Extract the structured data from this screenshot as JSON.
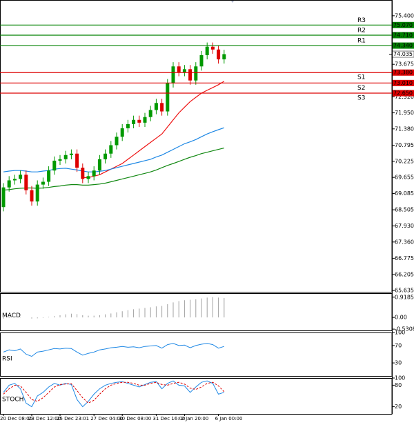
{
  "chart_data": [
    {
      "type": "candlestick",
      "categories": [
        "20 Dec 08:00",
        null,
        null,
        null,
        null,
        "23 Dec 12:00",
        null,
        null,
        null,
        null,
        "25 Dec 23:01",
        null,
        null,
        null,
        null,
        null,
        "27 Dec 04:00",
        null,
        null,
        null,
        null,
        "30 Dec 08:00",
        null,
        null,
        null,
        null,
        null,
        "31 Dec 16:00",
        null,
        null,
        null,
        null,
        "2 Jan 20:00",
        null,
        null,
        null,
        null,
        null,
        "6 Jan 00:00",
        null
      ],
      "open": [
        68.6,
        69.3,
        69.55,
        69.6,
        69.75,
        69.2,
        68.8,
        69.4,
        69.5,
        69.9,
        70.25,
        70.3,
        70.45,
        70.5,
        70.0,
        69.6,
        69.7,
        69.9,
        70.3,
        70.5,
        70.8,
        71.1,
        71.4,
        71.55,
        71.7,
        71.6,
        71.8,
        72.05,
        72.3,
        72.0,
        73.0,
        73.6,
        73.4,
        73.5,
        73.1,
        73.6,
        74.0,
        74.3,
        74.2,
        73.85
      ],
      "high": [
        69.45,
        69.7,
        69.75,
        69.9,
        69.9,
        69.35,
        69.55,
        69.65,
        70.05,
        70.4,
        70.45,
        70.6,
        70.65,
        70.65,
        70.15,
        69.85,
        70.05,
        70.45,
        70.65,
        70.95,
        71.25,
        71.55,
        71.7,
        71.85,
        71.85,
        71.95,
        72.2,
        72.45,
        72.45,
        73.15,
        73.75,
        73.75,
        73.65,
        73.65,
        73.75,
        74.15,
        74.45,
        74.45,
        74.35,
        74.19
      ],
      "low": [
        68.45,
        69.15,
        69.4,
        69.45,
        69.05,
        68.65,
        68.65,
        69.25,
        69.35,
        69.75,
        70.1,
        70.15,
        70.3,
        69.85,
        69.45,
        69.45,
        69.55,
        69.75,
        70.15,
        70.35,
        70.65,
        70.95,
        71.25,
        71.4,
        71.45,
        71.45,
        71.65,
        71.9,
        71.85,
        71.85,
        72.85,
        73.25,
        73.25,
        72.95,
        72.95,
        73.45,
        73.85,
        74.05,
        73.7,
        73.7
      ],
      "close": [
        69.3,
        69.55,
        69.6,
        69.75,
        69.2,
        68.8,
        69.4,
        69.5,
        69.9,
        70.25,
        70.3,
        70.45,
        70.5,
        70.0,
        69.6,
        69.7,
        69.9,
        70.3,
        70.5,
        70.8,
        71.1,
        71.4,
        71.55,
        71.7,
        71.6,
        71.8,
        72.05,
        72.3,
        72.0,
        73.0,
        73.6,
        73.4,
        73.5,
        73.1,
        73.6,
        74.0,
        74.3,
        74.2,
        73.85,
        74.035
      ],
      "up_color": "#009900",
      "down_color": "#dd0000",
      "series": [
        {
          "color": "#ee1111",
          "values": [
            null,
            null,
            null,
            null,
            null,
            null,
            null,
            null,
            null,
            null,
            null,
            null,
            null,
            null,
            69.65,
            69.65,
            69.7,
            69.75,
            69.85,
            69.95,
            70.05,
            70.15,
            70.3,
            70.45,
            70.6,
            70.75,
            70.9,
            71.05,
            71.2,
            71.45,
            71.7,
            71.95,
            72.15,
            72.35,
            72.5,
            72.65,
            72.75,
            72.85,
            72.95,
            73.07
          ]
        },
        {
          "color": "#1e88e5",
          "values": [
            69.85,
            69.88,
            69.9,
            69.9,
            69.88,
            69.85,
            69.85,
            69.88,
            69.9,
            69.95,
            69.97,
            69.98,
            69.95,
            69.92,
            69.88,
            69.85,
            69.85,
            69.87,
            69.9,
            69.95,
            70.0,
            70.05,
            70.1,
            70.15,
            70.2,
            70.25,
            70.3,
            70.38,
            70.45,
            70.55,
            70.65,
            70.75,
            70.85,
            70.92,
            71.0,
            71.1,
            71.2,
            71.28,
            71.35,
            71.42
          ]
        },
        {
          "color": "#118811",
          "values": [
            69.2,
            69.22,
            69.25,
            69.27,
            69.28,
            69.28,
            69.27,
            69.28,
            69.3,
            69.33,
            69.35,
            69.38,
            69.4,
            69.4,
            69.38,
            69.38,
            69.4,
            69.42,
            69.45,
            69.5,
            69.55,
            69.6,
            69.65,
            69.7,
            69.75,
            69.8,
            69.85,
            69.92,
            70.0,
            70.08,
            70.15,
            70.22,
            70.3,
            70.37,
            70.43,
            70.5,
            70.55,
            70.6,
            70.65,
            70.7
          ]
        }
      ],
      "levels": {
        "names": [
          "R3",
          "R2",
          "R1",
          "S1",
          "S2",
          "S3"
        ],
        "values": [
          75.07,
          74.71,
          74.34,
          73.38,
          73.01,
          72.65
        ],
        "value_labels": [
          "75.070",
          "74.710",
          "74.340",
          "73.380",
          "73.010",
          "72.650"
        ],
        "colors": [
          "#008000",
          "#008000",
          "#008000",
          "#dd0000",
          "#dd0000",
          "#dd0000"
        ]
      },
      "last_price": 74.035,
      "ylim": [
        65.59,
        75.96
      ],
      "yticks": [
        {
          "value": 75.4,
          "label": "75.400"
        },
        73.675,
        {
          "value": 72.52,
          "label": "72.520"
        },
        {
          "value": 71.95,
          "label": "71.950"
        },
        {
          "value": 71.38,
          "label": "71.380"
        },
        70.795,
        70.225,
        69.655,
        69.085,
        68.505,
        {
          "value": 67.93,
          "label": "67.930"
        },
        {
          "value": 67.36,
          "label": "67.360"
        },
        66.775,
        66.205,
        65.635
      ]
    },
    {
      "type": "bar",
      "title": "MACD",
      "color": "#a0a0a0",
      "values": [
        -0.05,
        -0.03,
        0.0,
        0.02,
        0.0,
        -0.05,
        -0.04,
        -0.02,
        0.02,
        0.06,
        0.1,
        0.14,
        0.17,
        0.15,
        0.1,
        0.08,
        0.08,
        0.1,
        0.14,
        0.18,
        0.23,
        0.28,
        0.33,
        0.37,
        0.4,
        0.43,
        0.46,
        0.5,
        0.52,
        0.6,
        0.68,
        0.74,
        0.78,
        0.8,
        0.82,
        0.86,
        0.9,
        0.92,
        0.9,
        0.88
      ],
      "ylim": [
        -0.59,
        1.1
      ],
      "yticks": [
        0.9185,
        {
          "value": 0,
          "label": "0.00"
        },
        -0.5308
      ]
    },
    {
      "type": "line",
      "title": "RSI",
      "series": [
        {
          "color": "#1e88e5",
          "values": [
            55,
            60,
            58,
            62,
            50,
            45,
            55,
            57,
            60,
            63,
            62,
            64,
            63,
            55,
            48,
            52,
            55,
            60,
            62,
            65,
            66,
            68,
            66,
            67,
            65,
            68,
            69,
            70,
            64,
            72,
            75,
            70,
            71,
            65,
            70,
            73,
            75,
            72,
            64,
            68
          ]
        }
      ],
      "ylim": [
        0,
        100
      ],
      "yticks": [
        100,
        70,
        30
      ]
    },
    {
      "type": "line",
      "title": "STOCH",
      "series": [
        {
          "color": "#1e88e5",
          "dash": false,
          "values": [
            60,
            80,
            85,
            70,
            30,
            20,
            50,
            60,
            75,
            85,
            80,
            85,
            82,
            40,
            20,
            35,
            55,
            70,
            80,
            85,
            88,
            90,
            85,
            80,
            75,
            82,
            88,
            90,
            70,
            85,
            92,
            80,
            78,
            60,
            75,
            88,
            92,
            85,
            55,
            60
          ]
        },
        {
          "color": "#dd0000",
          "dash": true,
          "values": [
            55,
            70,
            80,
            78,
            60,
            40,
            35,
            45,
            60,
            75,
            82,
            83,
            84,
            65,
            45,
            30,
            38,
            55,
            70,
            80,
            85,
            88,
            88,
            85,
            80,
            80,
            85,
            88,
            82,
            80,
            85,
            88,
            83,
            72,
            68,
            75,
            85,
            88,
            78,
            62
          ]
        }
      ],
      "ylim": [
        0,
        100
      ],
      "yticks": [
        100,
        80,
        20
      ]
    }
  ]
}
